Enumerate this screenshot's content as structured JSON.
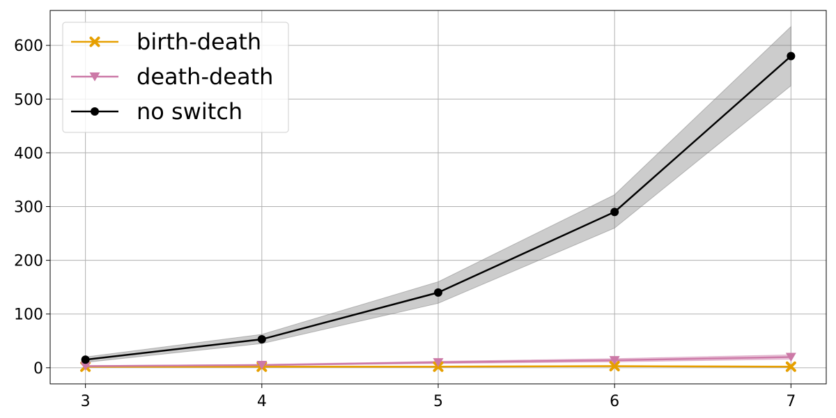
{
  "chart_data": {
    "type": "line",
    "title": "",
    "xlabel": "",
    "ylabel": "",
    "x": [
      3,
      4,
      5,
      6,
      7
    ],
    "xlim": [
      2.8,
      7.2
    ],
    "ylim": [
      -30,
      665
    ],
    "xticks": [
      3,
      4,
      5,
      6,
      7
    ],
    "yticks": [
      0,
      100,
      200,
      300,
      400,
      500,
      600
    ],
    "grid": true,
    "legend_position": "top-left",
    "series": [
      {
        "name": "birth-death",
        "color": "#e69f00",
        "marker": "x",
        "values": [
          2,
          2,
          2,
          3,
          2
        ],
        "band_lower": [
          1,
          1,
          1,
          2,
          1
        ],
        "band_upper": [
          3,
          3,
          3,
          4,
          3
        ]
      },
      {
        "name": "death-death",
        "color": "#cc79a7",
        "marker": "triangle-down",
        "values": [
          3,
          5,
          10,
          14,
          20
        ],
        "band_lower": [
          2,
          4,
          8,
          11,
          16
        ],
        "band_upper": [
          4,
          6,
          12,
          17,
          24
        ]
      },
      {
        "name": "no switch",
        "color": "#000000",
        "marker": "circle",
        "values": [
          15,
          53,
          140,
          290,
          580
        ],
        "band_lower": [
          10,
          45,
          120,
          260,
          525
        ],
        "band_upper": [
          20,
          62,
          160,
          322,
          635
        ]
      }
    ]
  }
}
